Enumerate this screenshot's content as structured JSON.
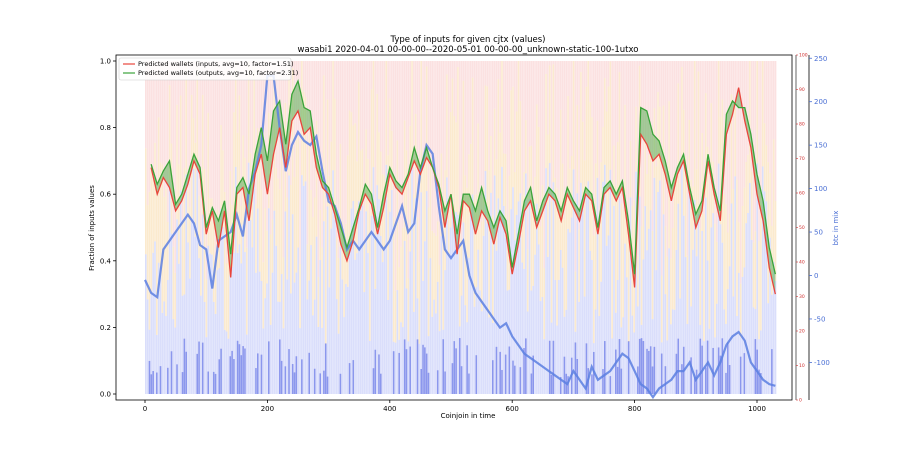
{
  "chart_data": {
    "type": "line",
    "title": "Type of inputs for given cjtx (values)",
    "subtitle": "wasabi1 2020-04-01 00-00-00--2020-05-01 00-00-00_unknown-static-100-1utxo",
    "xlabel": "Coinjoin in time",
    "ylabel": "Fraction of inputs values",
    "ylabel_right": "btc in mix",
    "xlim": [
      0,
      1035
    ],
    "ylim": [
      0,
      1.0
    ],
    "ylim_right": [
      -145,
      252
    ],
    "ylim_right_small": [
      0,
      100
    ],
    "x_ticks": [
      0,
      200,
      400,
      600,
      800,
      1000
    ],
    "y_ticks": [
      0.0,
      0.2,
      0.4,
      0.6,
      0.8,
      1.0
    ],
    "y_ticks_right": [
      -100,
      -50,
      0,
      50,
      100,
      150,
      200,
      250
    ],
    "y_ticks_right_small": [
      0,
      10,
      20,
      30,
      40,
      50,
      60,
      70,
      80,
      90,
      100
    ],
    "legend_position": "top-left",
    "colors": {
      "inputs": "#e8453c",
      "outputs": "#3aa33a",
      "outputs_fill": "#3aa33a",
      "btc": "#5b7fe0",
      "bars_blue": "#6a7cf0",
      "bars_orange": "#f7d9a6",
      "bars_red": "#f7c8c8",
      "right_axis_blue": "#4a6fd4",
      "right_axis_red": "#d03030"
    },
    "series": [
      {
        "name": "Predicted wallets (inputs, avg=10, factor=1.51)",
        "x": [
          10,
          20,
          30,
          40,
          50,
          60,
          70,
          80,
          90,
          100,
          110,
          120,
          130,
          140,
          150,
          160,
          170,
          180,
          190,
          200,
          210,
          220,
          230,
          240,
          250,
          260,
          270,
          280,
          290,
          300,
          310,
          320,
          330,
          340,
          350,
          360,
          370,
          380,
          390,
          400,
          410,
          420,
          430,
          440,
          450,
          460,
          470,
          480,
          490,
          500,
          510,
          520,
          530,
          540,
          550,
          560,
          570,
          580,
          590,
          600,
          610,
          620,
          630,
          640,
          650,
          660,
          670,
          680,
          690,
          700,
          710,
          720,
          730,
          740,
          750,
          760,
          770,
          780,
          790,
          800,
          810,
          820,
          830,
          840,
          850,
          860,
          870,
          880,
          890,
          900,
          910,
          920,
          930,
          940,
          950,
          960,
          970,
          980,
          990,
          1000,
          1010,
          1020,
          1030
        ],
        "values": [
          0.68,
          0.6,
          0.65,
          0.62,
          0.55,
          0.58,
          0.63,
          0.7,
          0.66,
          0.48,
          0.55,
          0.44,
          0.55,
          0.35,
          0.6,
          0.62,
          0.52,
          0.66,
          0.72,
          0.6,
          0.72,
          0.8,
          0.68,
          0.82,
          0.85,
          0.78,
          0.8,
          0.68,
          0.62,
          0.6,
          0.54,
          0.45,
          0.4,
          0.46,
          0.55,
          0.6,
          0.57,
          0.48,
          0.56,
          0.66,
          0.62,
          0.6,
          0.65,
          0.7,
          0.66,
          0.71,
          0.68,
          0.62,
          0.5,
          0.6,
          0.42,
          0.58,
          0.56,
          0.48,
          0.55,
          0.52,
          0.45,
          0.53,
          0.48,
          0.36,
          0.45,
          0.55,
          0.58,
          0.5,
          0.55,
          0.6,
          0.58,
          0.52,
          0.6,
          0.56,
          0.52,
          0.6,
          0.58,
          0.48,
          0.6,
          0.62,
          0.58,
          0.62,
          0.48,
          0.32,
          0.78,
          0.75,
          0.7,
          0.72,
          0.66,
          0.58,
          0.66,
          0.7,
          0.6,
          0.5,
          0.55,
          0.7,
          0.6,
          0.52,
          0.78,
          0.84,
          0.92,
          0.82,
          0.74,
          0.6,
          0.52,
          0.38,
          0.3
        ]
      },
      {
        "name": "Predicted wallets (outputs, avg=10, factor=2.31)",
        "x": [
          10,
          20,
          30,
          40,
          50,
          60,
          70,
          80,
          90,
          100,
          110,
          120,
          130,
          140,
          150,
          160,
          170,
          180,
          190,
          200,
          210,
          220,
          230,
          240,
          250,
          260,
          270,
          280,
          290,
          300,
          310,
          320,
          330,
          340,
          350,
          360,
          370,
          380,
          390,
          400,
          410,
          420,
          430,
          440,
          450,
          460,
          470,
          480,
          490,
          500,
          510,
          520,
          530,
          540,
          550,
          560,
          570,
          580,
          590,
          600,
          610,
          620,
          630,
          640,
          650,
          660,
          670,
          680,
          690,
          700,
          710,
          720,
          730,
          740,
          750,
          760,
          770,
          780,
          790,
          800,
          810,
          820,
          830,
          840,
          850,
          860,
          870,
          880,
          890,
          900,
          910,
          920,
          930,
          940,
          950,
          960,
          970,
          980,
          990,
          1000,
          1010,
          1020,
          1030
        ],
        "values": [
          0.69,
          0.63,
          0.67,
          0.7,
          0.57,
          0.6,
          0.66,
          0.72,
          0.68,
          0.5,
          0.56,
          0.52,
          0.58,
          0.42,
          0.62,
          0.65,
          0.6,
          0.72,
          0.8,
          0.7,
          0.85,
          0.88,
          0.75,
          0.9,
          0.94,
          0.86,
          0.85,
          0.72,
          0.64,
          0.62,
          0.56,
          0.5,
          0.44,
          0.5,
          0.56,
          0.63,
          0.6,
          0.5,
          0.6,
          0.68,
          0.64,
          0.62,
          0.66,
          0.74,
          0.68,
          0.74,
          0.68,
          0.63,
          0.55,
          0.6,
          0.48,
          0.6,
          0.6,
          0.55,
          0.62,
          0.55,
          0.5,
          0.55,
          0.52,
          0.38,
          0.48,
          0.58,
          0.62,
          0.52,
          0.58,
          0.62,
          0.6,
          0.55,
          0.62,
          0.58,
          0.55,
          0.62,
          0.6,
          0.5,
          0.62,
          0.64,
          0.6,
          0.64,
          0.52,
          0.36,
          0.86,
          0.85,
          0.78,
          0.76,
          0.7,
          0.62,
          0.68,
          0.72,
          0.62,
          0.54,
          0.58,
          0.72,
          0.62,
          0.55,
          0.84,
          0.88,
          0.86,
          0.86,
          0.78,
          0.66,
          0.58,
          0.44,
          0.36
        ]
      },
      {
        "name": "btc in mix",
        "axis": "right",
        "x": [
          0,
          10,
          20,
          30,
          40,
          50,
          60,
          70,
          80,
          90,
          100,
          110,
          120,
          130,
          140,
          150,
          160,
          170,
          180,
          190,
          200,
          210,
          220,
          230,
          240,
          250,
          260,
          270,
          280,
          290,
          300,
          310,
          320,
          330,
          340,
          350,
          360,
          370,
          380,
          390,
          400,
          410,
          420,
          430,
          440,
          450,
          460,
          470,
          480,
          490,
          500,
          510,
          520,
          530,
          540,
          550,
          560,
          570,
          580,
          590,
          600,
          610,
          620,
          630,
          640,
          650,
          660,
          670,
          680,
          690,
          700,
          710,
          720,
          730,
          740,
          750,
          760,
          770,
          780,
          790,
          800,
          810,
          820,
          830,
          840,
          850,
          860,
          870,
          880,
          890,
          900,
          910,
          920,
          930,
          940,
          950,
          960,
          970,
          980,
          990,
          1000,
          1010,
          1020,
          1030
        ],
        "values": [
          -5,
          -20,
          -25,
          30,
          40,
          50,
          60,
          70,
          60,
          35,
          30,
          -15,
          40,
          45,
          50,
          70,
          45,
          100,
          120,
          150,
          230,
          230,
          170,
          120,
          150,
          165,
          155,
          150,
          160,
          120,
          85,
          80,
          60,
          30,
          40,
          30,
          40,
          50,
          40,
          30,
          40,
          60,
          80,
          50,
          60,
          120,
          150,
          140,
          80,
          30,
          20,
          30,
          40,
          0,
          -20,
          -30,
          -40,
          -50,
          -60,
          -55,
          -70,
          -80,
          -90,
          -95,
          -100,
          -105,
          -110,
          -115,
          -120,
          -125,
          -110,
          -120,
          -130,
          -105,
          -120,
          -115,
          -110,
          -100,
          -90,
          -95,
          -110,
          -125,
          -130,
          -140,
          -130,
          -125,
          -120,
          -110,
          -110,
          -100,
          -120,
          -110,
          -100,
          -115,
          -100,
          -80,
          -70,
          -65,
          -75,
          -100,
          -110,
          -120,
          -125,
          -127
        ]
      }
    ]
  }
}
